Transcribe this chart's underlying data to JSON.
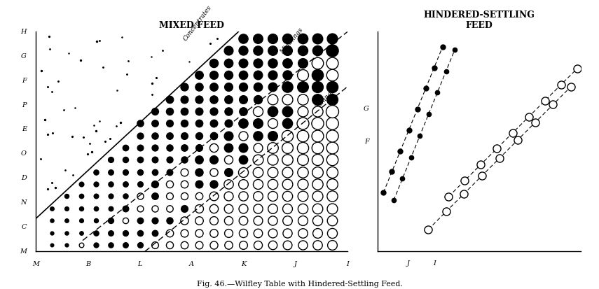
{
  "title_left": "MIXED FEED",
  "title_right": "HINDERED-SETTLING\nFEED",
  "caption": "Fig. 46.—Wilfley Table with Hindered-Settling Feed.",
  "bg_color": "#ffffff",
  "left_ylabels": [
    "M",
    "C",
    "N",
    "D",
    "O",
    "E",
    "P",
    "F",
    "G",
    "H"
  ],
  "left_xlabels": [
    "M",
    "B",
    "L",
    "A",
    "K",
    "J",
    "I"
  ],
  "right_ylabels": [
    "F",
    "G"
  ],
  "right_xlabels": [
    "J",
    "I"
  ]
}
